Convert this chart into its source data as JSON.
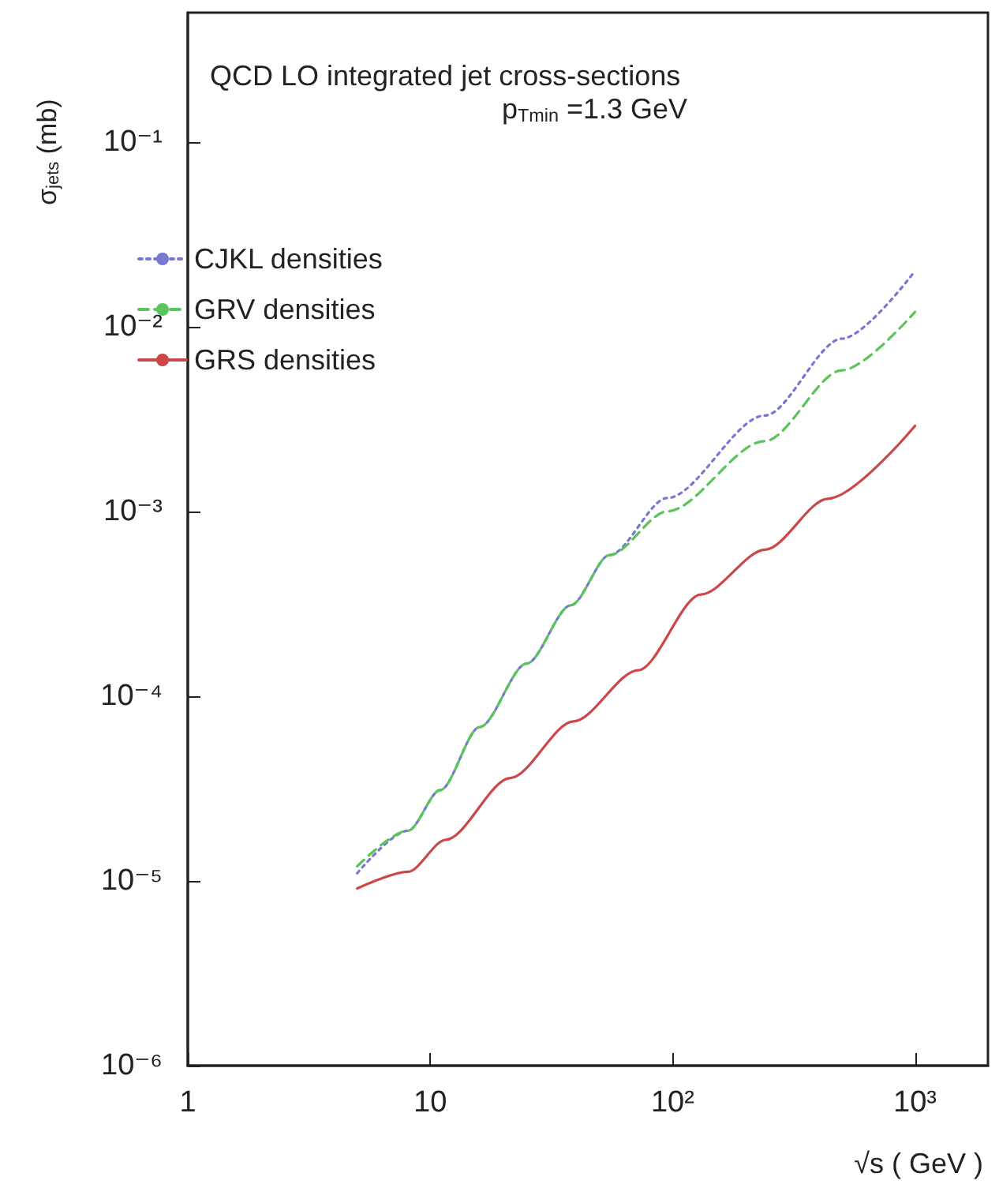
{
  "chart_data": {
    "type": "line",
    "title": "QCD LO integrated jet cross-sections",
    "annotations": [
      "p$_{Tmin}$ =1.3 GeV"
    ],
    "xlabel": "√s ( GeV )",
    "ylabel": "σ$_{jets}$ (mb)",
    "log": "xy",
    "grid": false,
    "legend": "top left",
    "marker": "none",
    "xlim": [
      1,
      2000
    ],
    "xticks": [
      1,
      10,
      {
        "value": 100,
        "label": "10²"
      },
      {
        "value": 1000,
        "label": "10³"
      }
    ],
    "ylim": [
      1e-06,
      0.5
    ],
    "yticks": [
      {
        "value": 1e-06,
        "label": "10⁻⁶"
      },
      {
        "value": 1e-05,
        "label": "10⁻⁵"
      },
      {
        "value": 0.0001,
        "label": "10⁻⁴"
      },
      {
        "value": 0.001,
        "label": "10⁻³"
      },
      {
        "value": 0.01,
        "label": "10⁻²"
      },
      {
        "value": 0.1,
        "label": "10⁻¹"
      }
    ],
    "series": [
      {
        "name": "CJKL densities",
        "color": "#7878d0",
        "line_style": "dotted",
        "x": [
          5,
          8.1,
          11,
          16,
          25,
          38,
          55,
          95,
          240,
          500,
          1000
        ],
        "values": [
          1.1e-05,
          1.87e-05,
          3.1e-05,
          6.8e-05,
          0.00015,
          0.00031,
          0.00058,
          0.00118,
          0.0033,
          0.0086,
          0.02
        ]
      },
      {
        "name": "GRV densities",
        "color": "#5cc45c",
        "line_style": "dashed",
        "x": [
          5,
          8.1,
          11,
          16,
          25,
          38,
          55,
          95,
          240,
          500,
          1000
        ],
        "values": [
          1.2e-05,
          1.87e-05,
          3.1e-05,
          6.8e-05,
          0.00015,
          0.00031,
          0.00058,
          0.001,
          0.0024,
          0.0058,
          0.012
        ]
      },
      {
        "name": "GRS densities",
        "color": "#cc4848",
        "line_style": "solid",
        "x": [
          5,
          8.1,
          11.6,
          21.4,
          39,
          72,
          131,
          241,
          437,
          1000
        ],
        "values": [
          9.1e-06,
          1.12e-05,
          1.67e-05,
          3.6e-05,
          7.3e-05,
          0.000138,
          0.000355,
          0.00062,
          0.00117,
          0.0029
        ]
      }
    ]
  }
}
